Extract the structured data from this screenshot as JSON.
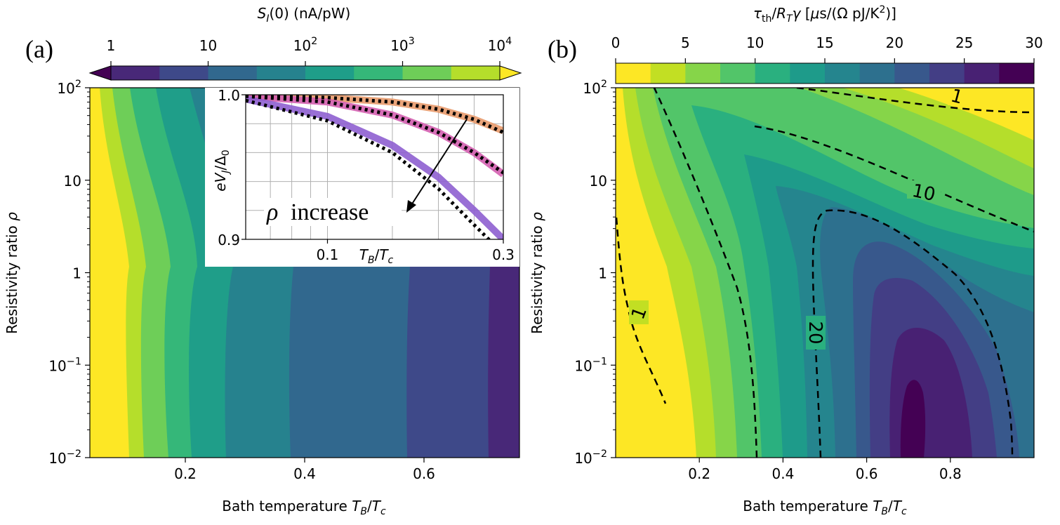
{
  "figure": {
    "panels": [
      {
        "label": "(a)"
      },
      {
        "label": "(b)"
      }
    ]
  },
  "chart_data": [
    {
      "panel": "(a)",
      "type": "heatmap",
      "subtype": "filled-contour",
      "xlabel": "Bath temperature T_B/T_c",
      "ylabel": "Resistivity ratio ρ",
      "xlim": [
        0.04,
        0.76
      ],
      "ylim": [
        0.01,
        100
      ],
      "yscale": "log",
      "x_ticks": [
        0.2,
        0.4,
        0.6
      ],
      "x_tick_labels": [
        "0.2",
        "0.4",
        "0.6"
      ],
      "y_ticks": [
        0.01,
        0.1,
        1,
        10,
        100
      ],
      "y_tick_labels": [
        "10^-2",
        "10^-1",
        "1",
        "10",
        "10^2"
      ],
      "colorbar": {
        "label": "S_I(0) (nA/pW)",
        "scale": "log",
        "range": [
          0.1,
          100000
        ],
        "ticks": [
          1,
          10,
          100,
          1000,
          10000
        ],
        "tick_labels": [
          "1",
          "10",
          "10^2",
          "10^3",
          "10^4"
        ],
        "extend": "both",
        "colors": [
          "#440154",
          "#482878",
          "#3e4989",
          "#31688e",
          "#26828e",
          "#1f9e89",
          "#35b779",
          "#6ece58",
          "#b5de2b",
          "#fde725"
        ]
      },
      "bands_at_rho_1": {
        "x": [
          0.04,
          0.1,
          0.17,
          0.24,
          0.33,
          0.44,
          0.6,
          0.72,
          0.76
        ],
        "level_index": [
          9,
          8,
          7,
          6,
          5,
          4,
          3,
          2,
          1
        ]
      },
      "inset": {
        "type": "line",
        "xlabel": "T_B/T_c",
        "ylabel": "eV_J/Δ_0",
        "xscale": "log",
        "xlim": [
          0.06,
          0.3
        ],
        "ylim": [
          0.9,
          1.0
        ],
        "x_tick_labels": [
          "0.1",
          "0.3"
        ],
        "y_tick_labels": [
          "0.9",
          "1.0"
        ],
        "grid": true,
        "annotation": "ρ increase",
        "series": [
          {
            "color": "#e89a6c",
            "style": "thick",
            "x": [
              0.06,
              0.1,
              0.15,
              0.2,
              0.25,
              0.3
            ],
            "y": [
              0.9995,
              0.998,
              0.995,
              0.99,
              0.983,
              0.975
            ]
          },
          {
            "color": "#d45fb0",
            "style": "thick",
            "x": [
              0.06,
              0.1,
              0.15,
              0.2,
              0.25,
              0.3
            ],
            "y": [
              0.999,
              0.995,
              0.986,
              0.974,
              0.96,
              0.945
            ]
          },
          {
            "color": "#8e5fd0",
            "style": "thick",
            "x": [
              0.06,
              0.1,
              0.15,
              0.2,
              0.25,
              0.3
            ],
            "y": [
              0.997,
              0.985,
              0.965,
              0.943,
              0.92,
              0.9
            ]
          },
          {
            "color": "#000000",
            "style": "dotted",
            "x": [
              0.06,
              0.1,
              0.15,
              0.2,
              0.25,
              0.3
            ],
            "y": [
              0.9995,
              0.998,
              0.995,
              0.99,
              0.983,
              0.974
            ]
          },
          {
            "color": "#000000",
            "style": "dotted",
            "x": [
              0.06,
              0.1,
              0.15,
              0.2,
              0.25,
              0.3
            ],
            "y": [
              0.999,
              0.995,
              0.986,
              0.974,
              0.96,
              0.946
            ]
          },
          {
            "color": "#000000",
            "style": "dotted",
            "x": [
              0.06,
              0.1,
              0.15,
              0.2,
              0.25,
              0.3
            ],
            "y": [
              0.996,
              0.982,
              0.96,
              0.935,
              0.91,
              0.89
            ]
          }
        ]
      }
    },
    {
      "panel": "(b)",
      "type": "heatmap",
      "subtype": "filled-contour",
      "xlabel": "Bath temperature T_B/T_c",
      "ylabel": "Resistivity ratio ρ",
      "xlim": [
        0.0,
        1.0
      ],
      "ylim": [
        0.01,
        100
      ],
      "yscale": "log",
      "x_ticks": [
        0.2,
        0.4,
        0.6,
        0.8
      ],
      "x_tick_labels": [
        "0.2",
        "0.4",
        "0.6",
        "0.8"
      ],
      "y_ticks": [
        0.01,
        0.1,
        1,
        10,
        100
      ],
      "y_tick_labels": [
        "10^-2",
        "10^-1",
        "1",
        "10",
        "10^2"
      ],
      "colorbar": {
        "label": "τ_th/R_Tγ [μs/(Ω pJ/K^2)]",
        "scale": "linear",
        "range": [
          0,
          30
        ],
        "ticks": [
          0,
          5,
          10,
          15,
          20,
          25,
          30
        ],
        "tick_labels": [
          "0",
          "5",
          "10",
          "15",
          "20",
          "25",
          "30"
        ],
        "extend": "neither",
        "colors": [
          "#fde725",
          "#c2df23",
          "#86d549",
          "#52c569",
          "#2ab07f",
          "#1e9b8a",
          "#25858e",
          "#2d708e",
          "#38588c",
          "#433e85",
          "#482173",
          "#440154"
        ]
      },
      "contour_lines": [
        {
          "level": "1",
          "style": "dashed"
        },
        {
          "level": "10",
          "style": "dashed"
        },
        {
          "level": "20",
          "style": "dashed"
        }
      ]
    }
  ]
}
